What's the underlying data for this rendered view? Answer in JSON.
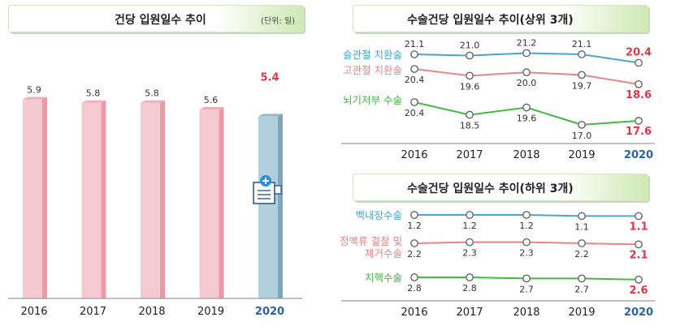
{
  "chart_data": [
    {
      "type": "bar",
      "title": "건당 입원일수 추이",
      "unit": "(단위: 일)",
      "categories": [
        "2016",
        "2017",
        "2018",
        "2019",
        "2020"
      ],
      "values": [
        5.9,
        5.8,
        5.8,
        5.6,
        5.4
      ],
      "ylim": [
        0,
        6.6
      ],
      "highlight_index": 4,
      "colors": {
        "bar": "#f4c9cf",
        "bar_side": "#ec9aa6",
        "highlight": "#b1cfdd",
        "highlight_side": "#7fa7ba",
        "highlight_text": "#e53548",
        "highlight_year": "#2a64a6"
      }
    },
    {
      "type": "line",
      "title": "수술건당 입원일수 추이(상위 3개)",
      "categories": [
        "2016",
        "2017",
        "2018",
        "2019",
        "2020"
      ],
      "series": [
        {
          "name": "슬관절 치환술",
          "values": [
            21.1,
            21.0,
            21.2,
            21.1,
            20.4
          ],
          "color": "#4aa6cc"
        },
        {
          "name": "고관절 치환술",
          "values": [
            20.4,
            19.6,
            20.0,
            19.7,
            18.6
          ],
          "color": "#e98589"
        },
        {
          "name": "뇌기저부 수술",
          "values": [
            20.4,
            18.5,
            19.6,
            17.0,
            17.6
          ],
          "color": "#43b843"
        }
      ],
      "highlight_color": "#e53548"
    },
    {
      "type": "line",
      "title": "수술건당 입원일수 추이(하위 3개)",
      "categories": [
        "2016",
        "2017",
        "2018",
        "2019",
        "2020"
      ],
      "series": [
        {
          "name": "백내장수술",
          "values": [
            1.2,
            1.2,
            1.2,
            1.1,
            1.1
          ],
          "color": "#4aa6cc"
        },
        {
          "name": "정맥류 결찰 및 제거수술",
          "name_lines": [
            "정맥류 결찰 및",
            "제거수술"
          ],
          "values": [
            2.2,
            2.3,
            2.3,
            2.2,
            2.1
          ],
          "color": "#e98589"
        },
        {
          "name": "치핵수술",
          "values": [
            2.8,
            2.8,
            2.7,
            2.7,
            2.6
          ],
          "color": "#43b843"
        }
      ],
      "highlight_color": "#e53548"
    }
  ]
}
